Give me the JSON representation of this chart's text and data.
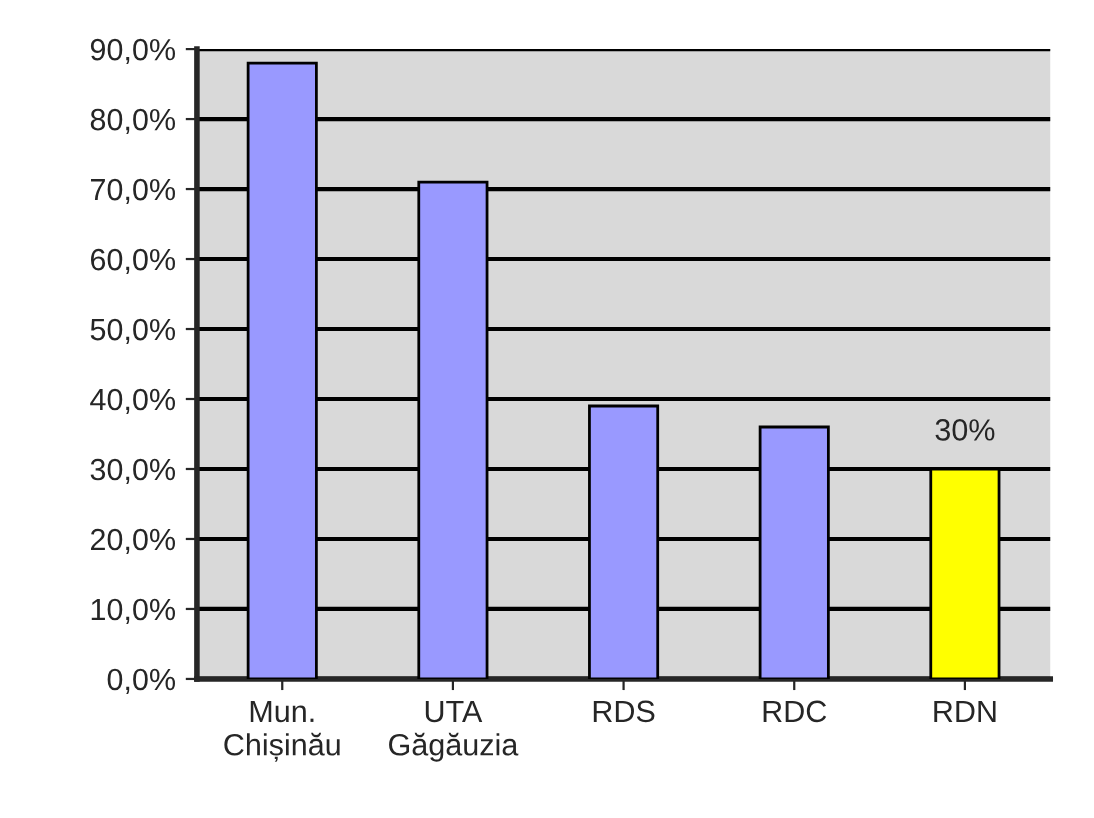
{
  "chart_data": {
    "type": "bar",
    "categories": [
      "Mun.\nChișinău",
      "UTA\nGăgăuzia",
      "RDS",
      "RDC",
      "RDN"
    ],
    "values": [
      88,
      71,
      39,
      36,
      30
    ],
    "colors": [
      "#9999ff",
      "#9999ff",
      "#9999ff",
      "#9999ff",
      "#ffff00"
    ],
    "value_labels": [
      null,
      null,
      null,
      null,
      "30%"
    ],
    "ylim": [
      0,
      90
    ],
    "yticks": [
      {
        "value": 0,
        "label": "0,0%"
      },
      {
        "value": 10,
        "label": "10,0%"
      },
      {
        "value": 20,
        "label": "20,0%"
      },
      {
        "value": 30,
        "label": "30,0%"
      },
      {
        "value": 40,
        "label": "40,0%"
      },
      {
        "value": 50,
        "label": "50,0%"
      },
      {
        "value": 60,
        "label": "60,0%"
      },
      {
        "value": 70,
        "label": "70,0%"
      },
      {
        "value": 80,
        "label": "80,0%"
      },
      {
        "value": 90,
        "label": "90,0%"
      }
    ],
    "grid": "y"
  }
}
